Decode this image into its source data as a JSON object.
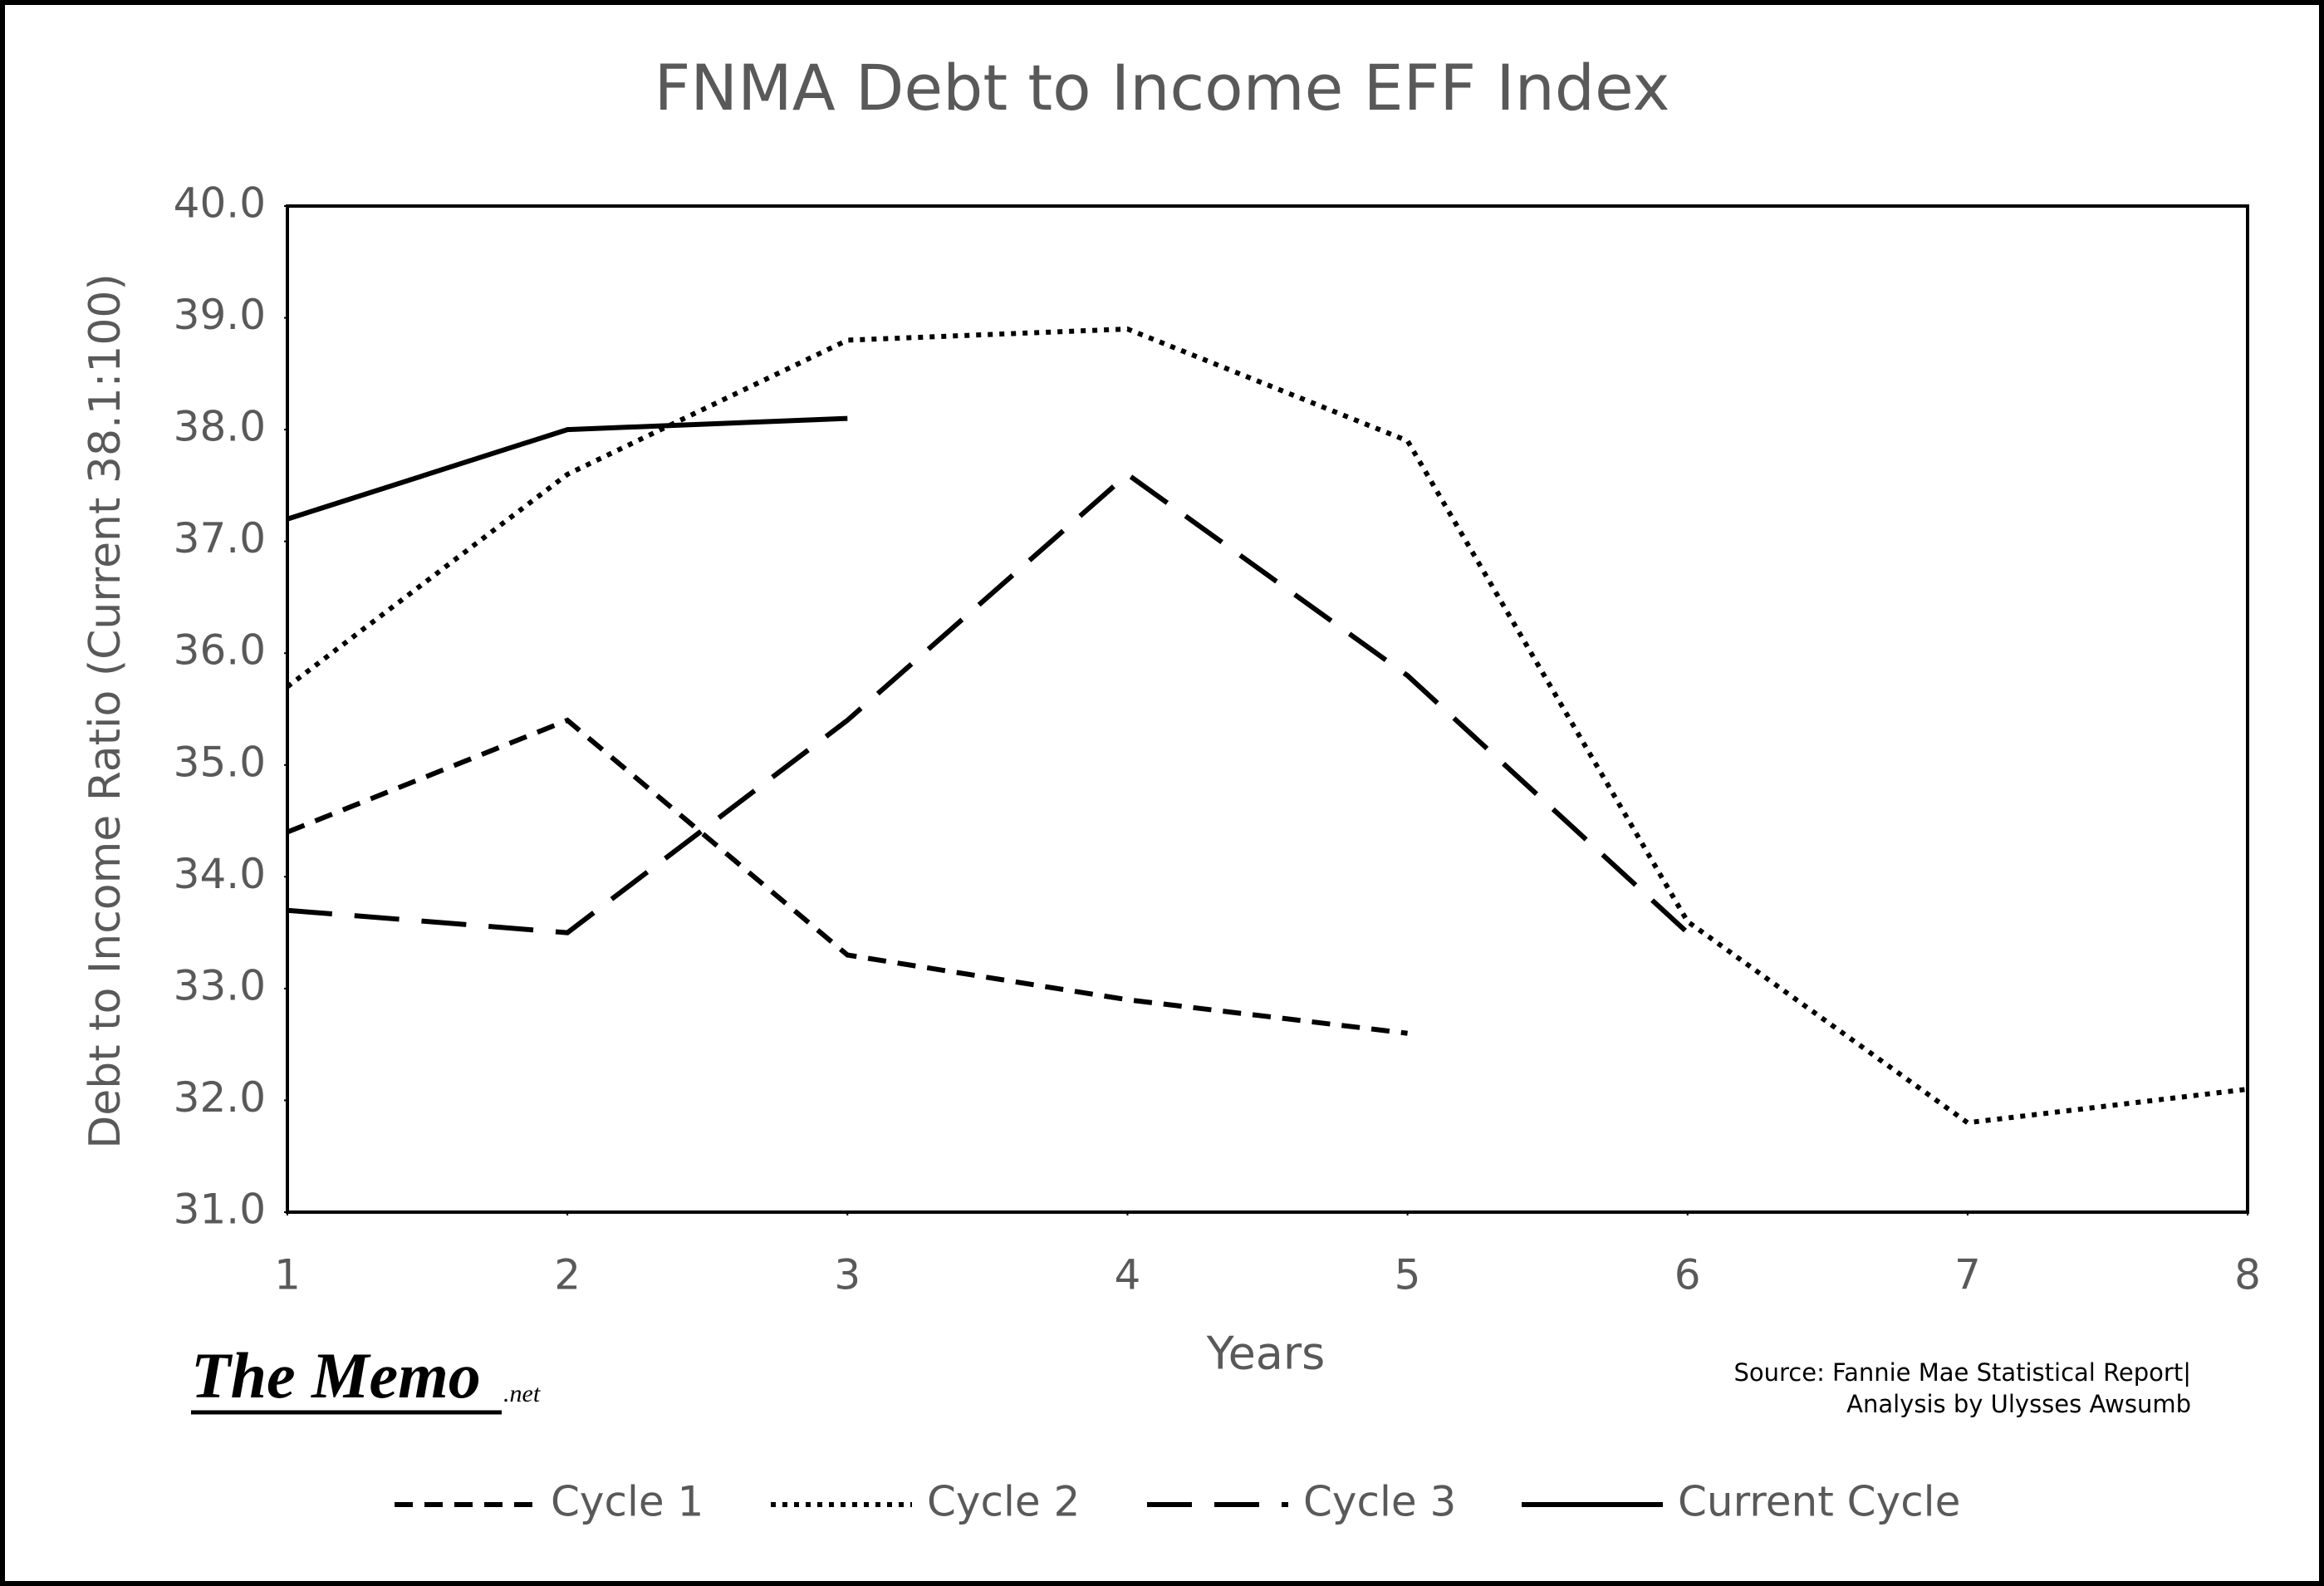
{
  "chart_data": {
    "type": "line",
    "title": "FNMA Debt to Income EFF Index",
    "xlabel": "Years",
    "ylabel": "Debt to Income Ratio (Current 38.1:100)",
    "x": [
      1,
      2,
      3,
      4,
      5,
      6,
      7,
      8
    ],
    "xlim": [
      1,
      8
    ],
    "xticks": [
      1,
      2,
      3,
      4,
      5,
      6,
      7,
      8
    ],
    "ylim": [
      31,
      40
    ],
    "yticks": [
      {
        "value": 31,
        "label": "31.0"
      },
      {
        "value": 32,
        "label": "32.0"
      },
      {
        "value": 33,
        "label": "33.0"
      },
      {
        "value": 34,
        "label": "34.0"
      },
      {
        "value": 35,
        "label": "35.0"
      },
      {
        "value": 36,
        "label": "36.0"
      },
      {
        "value": 37,
        "label": "37.0"
      },
      {
        "value": 38,
        "label": "38.0"
      },
      {
        "value": 39,
        "label": "39.0"
      },
      {
        "value": 40,
        "label": "40.0"
      }
    ],
    "grid": false,
    "legend": "bottom",
    "series": [
      {
        "name": "Cycle 1",
        "color": "#000000",
        "values": [
          34.4,
          35.4,
          33.3,
          32.9,
          32.6,
          null,
          null,
          null
        ]
      },
      {
        "name": "Cycle 2",
        "color": "#000000",
        "values": [
          35.7,
          37.6,
          38.8,
          38.9,
          37.9,
          33.6,
          31.8,
          32.1
        ]
      },
      {
        "name": "Cycle 3",
        "color": "#000000",
        "values": [
          33.7,
          33.5,
          35.4,
          37.6,
          35.8,
          33.5,
          null,
          null
        ]
      },
      {
        "name": "Current Cycle",
        "color": "#000000",
        "values": [
          37.2,
          38.0,
          38.1,
          null,
          null,
          null,
          null,
          null
        ]
      }
    ],
    "source": [
      "Source: Fannie Mae Statistical Report|",
      "Analysis by Ulysses Awsumb"
    ],
    "logo": {
      "name": "The Memo",
      "suffix": ".net"
    }
  }
}
